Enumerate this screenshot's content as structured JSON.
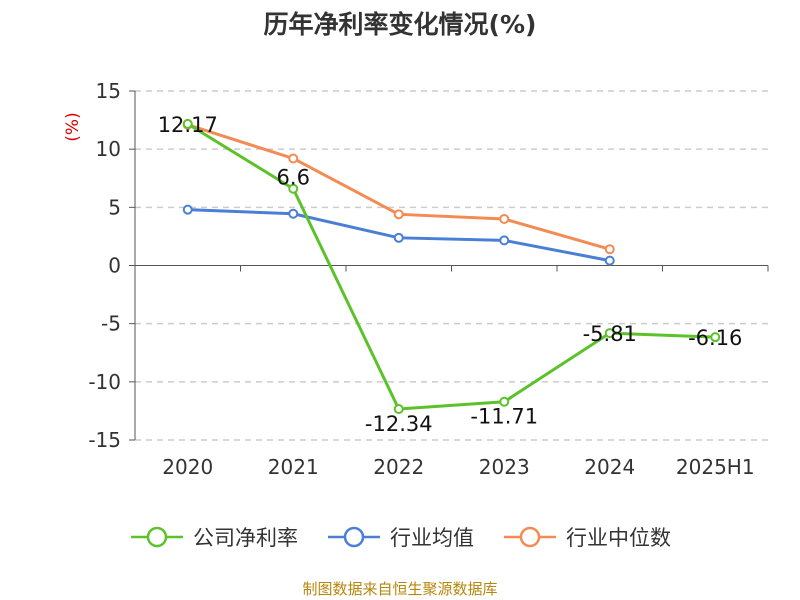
{
  "source_note": "制图数据来自恒生聚源数据库",
  "chart_data": {
    "type": "line",
    "title": "历年净利率变化情况(%)",
    "ylabel": "(%)",
    "xlabel": "",
    "categories": [
      "2020",
      "2021",
      "2022",
      "2023",
      "2024",
      "2025H1"
    ],
    "ylim": [
      -15,
      15
    ],
    "yticks": [
      15,
      10,
      5,
      0,
      -5,
      -10,
      -15
    ],
    "grid": true,
    "legend_position": "bottom",
    "series": [
      {
        "name": "公司净利率",
        "color": "#5cc22a",
        "values": [
          12.17,
          6.6,
          -12.34,
          -11.71,
          -5.81,
          -6.16
        ],
        "data_labels": [
          "12.17",
          "6.6",
          "-12.34",
          "-11.71",
          "-5.81",
          "-6.16"
        ]
      },
      {
        "name": "行业均值",
        "color": "#4a7fd6",
        "values": [
          4.8,
          4.45,
          2.38,
          2.16,
          0.42,
          null
        ]
      },
      {
        "name": "行业中位数",
        "color": "#f38b53",
        "values": [
          12.1,
          9.2,
          4.4,
          4.0,
          1.4,
          null
        ]
      }
    ]
  }
}
